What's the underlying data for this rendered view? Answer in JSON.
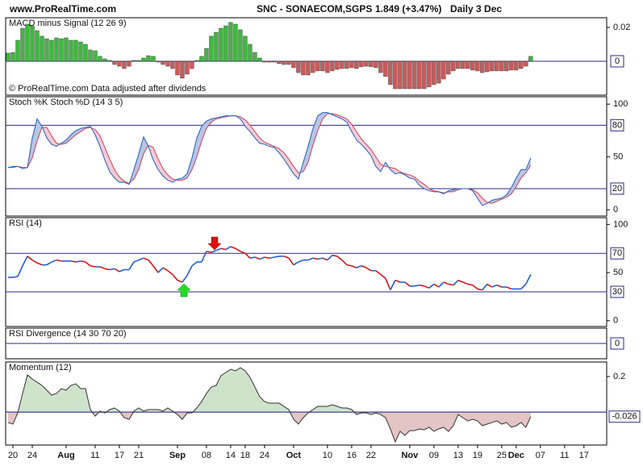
{
  "header": {
    "site": "www.ProRealTime.com",
    "title": "SNC - SONAECOM,SGPS",
    "price": "1.849 (+3.47%)",
    "period": "Daily  3 Dec"
  },
  "xaxis": {
    "xlim": [
      -0.5,
      123.7
    ],
    "xticks": [
      {
        "value": 1,
        "label": "20"
      },
      {
        "value": 5,
        "label": "24"
      },
      {
        "value": 12,
        "label": "Aug"
      },
      {
        "value": 18,
        "label": "11"
      },
      {
        "value": 23,
        "label": "17"
      },
      {
        "value": 27,
        "label": "21"
      },
      {
        "value": 35,
        "label": "Sep"
      },
      {
        "value": 41,
        "label": "08"
      },
      {
        "value": 46,
        "label": "14"
      },
      {
        "value": 49,
        "label": "18"
      },
      {
        "value": 53,
        "label": "24"
      },
      {
        "value": 59,
        "label": "Oct"
      },
      {
        "value": 66,
        "label": "10"
      },
      {
        "value": 71,
        "label": "16"
      },
      {
        "value": 75,
        "label": "22"
      },
      {
        "value": 83,
        "label": "Nov"
      },
      {
        "value": 88,
        "label": "09"
      },
      {
        "value": 93,
        "label": "13"
      },
      {
        "value": 97,
        "label": "19"
      },
      {
        "value": 102,
        "label": "25"
      },
      {
        "value": 105,
        "label": "Dec"
      },
      {
        "value": 110,
        "label": "07"
      },
      {
        "value": 115,
        "label": "11"
      },
      {
        "value": 119,
        "label": "17"
      }
    ]
  },
  "chart_data": [
    {
      "type": "bar",
      "label": "MACD minus Signal (12 26 9)",
      "label_color": "#3a9a3a",
      "annotation": "© ProRealTime.com  Data adjusted after dividends",
      "up_color": "#3cba3c",
      "down_color": "#cc5a5a",
      "ylim": [
        -0.02,
        0.0257
      ],
      "yticks": [
        0.02
      ],
      "levels": [
        0
      ],
      "level_labels": true,
      "values": [
        0.0048,
        0.0052,
        0.0124,
        0.0195,
        0.0219,
        0.0209,
        0.0181,
        0.0148,
        0.0133,
        0.0124,
        0.0138,
        0.0133,
        0.0138,
        0.0124,
        0.0124,
        0.0114,
        0.01,
        0.0067,
        0.0062,
        0.0029,
        0.0014,
        0.0005,
        -0.0019,
        -0.0029,
        -0.0043,
        -0.0029,
        0.0005,
        0.0005,
        0.0019,
        0.0033,
        0.0029,
        -0.0005,
        -0.0019,
        -0.0029,
        -0.0043,
        -0.0081,
        -0.01,
        -0.0076,
        -0.0043,
        0.0005,
        0.0029,
        0.0076,
        0.0148,
        0.0171,
        0.0195,
        0.0209,
        0.0229,
        0.0219,
        0.0186,
        0.0148,
        0.01,
        0.0052,
        0.0019,
        -0.0005,
        -0.0005,
        -0.0005,
        -0.0014,
        -0.0019,
        -0.0019,
        -0.0038,
        -0.0067,
        -0.0081,
        -0.0081,
        -0.0067,
        -0.0057,
        -0.0057,
        -0.0067,
        -0.0057,
        -0.0048,
        -0.0043,
        -0.0043,
        -0.0038,
        -0.0043,
        -0.0033,
        -0.0029,
        -0.0033,
        -0.0038,
        -0.0067,
        -0.009,
        -0.0138,
        -0.0162,
        -0.0162,
        -0.0162,
        -0.0162,
        -0.0162,
        -0.0162,
        -0.0162,
        -0.0152,
        -0.0138,
        -0.0129,
        -0.0105,
        -0.0076,
        -0.0057,
        -0.0043,
        -0.0043,
        -0.0043,
        -0.0052,
        -0.0057,
        -0.0067,
        -0.0062,
        -0.0057,
        -0.0057,
        -0.0057,
        -0.0057,
        -0.0052,
        -0.0052,
        -0.0043,
        -0.0029,
        0.0029
      ]
    },
    {
      "type": "stochastic",
      "label": "Stoch %K Stoch %D (14 3 5)",
      "label_color": "#2a5a9a",
      "ylim": [
        -6,
        107
      ],
      "yticks": [
        0,
        50,
        100
      ],
      "levels": [
        20,
        80
      ],
      "level_labels": true,
      "fill_up": "#b9c3e2",
      "fill_down": "#f5c9d3",
      "series": [
        {
          "color": "#2060c0",
          "values": [
            40,
            41,
            41,
            39,
            40,
            68,
            86,
            79,
            68,
            62,
            60,
            63,
            66,
            71,
            75,
            77,
            78,
            79,
            71,
            60,
            47,
            36,
            30,
            26,
            26,
            24,
            38,
            53,
            69,
            60,
            47,
            38,
            32,
            28,
            26,
            29,
            30,
            34,
            49,
            68,
            79,
            84,
            86,
            87,
            88,
            89,
            89,
            89,
            86,
            79,
            74,
            68,
            63,
            62,
            60,
            59,
            54,
            48,
            41,
            34,
            29,
            45,
            60,
            77,
            89,
            92,
            92,
            90,
            88,
            86,
            83,
            74,
            66,
            62,
            57,
            51,
            41,
            36,
            45,
            38,
            34,
            35,
            33,
            30,
            29,
            23,
            20,
            18,
            17,
            17,
            15,
            18,
            19,
            20,
            20,
            20,
            18,
            11,
            4,
            6,
            9,
            10,
            11,
            14,
            21,
            30,
            38,
            38,
            49
          ]
        },
        {
          "color": "#d0405a",
          "values": [
            40,
            40,
            41,
            40,
            40,
            49,
            65,
            78,
            78,
            70,
            63,
            62,
            63,
            67,
            71,
            74,
            77,
            78,
            76,
            70,
            59,
            48,
            38,
            31,
            27,
            25,
            29,
            38,
            53,
            61,
            59,
            48,
            39,
            33,
            29,
            28,
            28,
            30,
            38,
            50,
            65,
            77,
            83,
            86,
            87,
            88,
            89,
            89,
            88,
            85,
            80,
            74,
            68,
            64,
            62,
            60,
            58,
            54,
            48,
            41,
            35,
            36,
            45,
            61,
            75,
            86,
            91,
            91,
            90,
            88,
            86,
            81,
            74,
            67,
            62,
            57,
            50,
            43,
            41,
            40,
            39,
            36,
            34,
            33,
            31,
            27,
            24,
            20,
            18,
            17,
            16,
            17,
            17,
            19,
            20,
            20,
            19,
            16,
            11,
            7,
            6,
            8,
            10,
            12,
            15,
            22,
            30,
            35,
            42
          ]
        }
      ]
    },
    {
      "type": "rsi",
      "label": "RSI (14)",
      "label_color": "#2a5a9a",
      "up_color": "#1f5fd0",
      "down_color": "#d01818",
      "ylim": [
        -6,
        107
      ],
      "yticks": [
        0,
        50,
        100
      ],
      "levels": [
        30,
        70
      ],
      "level_labels": true,
      "values": [
        45,
        45,
        46,
        57,
        67,
        63,
        60,
        58,
        58,
        61,
        63,
        62,
        62,
        62,
        61,
        62,
        61,
        57,
        56,
        56,
        54,
        53,
        54,
        51,
        53,
        53,
        61,
        63,
        65,
        63,
        57,
        50,
        55,
        52,
        48,
        42,
        40,
        47,
        57,
        61,
        61,
        72,
        71,
        73,
        75,
        74,
        77,
        75,
        72,
        70,
        65,
        66,
        64,
        66,
        65,
        66,
        67,
        67,
        65,
        58,
        61,
        63,
        63,
        65,
        64,
        65,
        63,
        68,
        67,
        63,
        58,
        57,
        55,
        57,
        55,
        52,
        52,
        48,
        44,
        32,
        42,
        40,
        40,
        36,
        36,
        37,
        36,
        34,
        38,
        35,
        40,
        38,
        37,
        42,
        40,
        38,
        37,
        33,
        32,
        38,
        35,
        37,
        35,
        35,
        33,
        33,
        33,
        38,
        48
      ]
    },
    {
      "type": "empty",
      "label": "RSI Divergence (14 30 70 20)",
      "label_color": "#3a9a3a",
      "ylim": [
        -1,
        1
      ],
      "yticks": [],
      "levels": [
        0
      ],
      "level_labels": true
    },
    {
      "type": "momentum",
      "label": "Momentum (12)",
      "label_color": "#222222",
      "line_color": "#333333",
      "fill_up": "#cfe3cb",
      "fill_down": "#e3c5c5",
      "ylim": [
        -0.186,
        0.282
      ],
      "yticks": [
        0.2
      ],
      "levels": [
        0
      ],
      "level_labels": false,
      "values": [
        -0.059,
        -0.068,
        -0.005,
        0.105,
        0.209,
        0.186,
        0.168,
        0.15,
        0.123,
        0.095,
        0.105,
        0.132,
        0.123,
        0.15,
        0.159,
        0.132,
        0.132,
        0.014,
        -0.023,
        0.005,
        -0.005,
        0.014,
        0.023,
        0.005,
        -0.032,
        -0.041,
        0.005,
        0.023,
        0.005,
        0.014,
        0.014,
        0.014,
        0.005,
        0.023,
        0.005,
        -0.014,
        -0.041,
        -0.005,
        -0.005,
        0.023,
        0.059,
        0.105,
        0.141,
        0.15,
        0.205,
        0.223,
        0.241,
        0.232,
        0.25,
        0.232,
        0.195,
        0.141,
        0.086,
        0.059,
        0.05,
        0.05,
        0.05,
        0.032,
        0.014,
        -0.041,
        -0.068,
        -0.032,
        -0.005,
        0.014,
        0.032,
        0.032,
        0.032,
        0.041,
        0.032,
        0.023,
        0.023,
        0.014,
        -0.014,
        -0.005,
        -0.005,
        -0.014,
        -0.005,
        -0.014,
        -0.032,
        -0.095,
        -0.168,
        -0.109,
        -0.132,
        -0.105,
        -0.105,
        -0.095,
        -0.1,
        -0.086,
        -0.109,
        -0.095,
        -0.086,
        -0.109,
        -0.077,
        -0.014,
        -0.032,
        -0.05,
        -0.041,
        -0.05,
        -0.077,
        -0.068,
        -0.059,
        -0.05,
        -0.068,
        -0.059,
        -0.086,
        -0.077,
        -0.059,
        -0.086,
        -0.026
      ]
    }
  ]
}
